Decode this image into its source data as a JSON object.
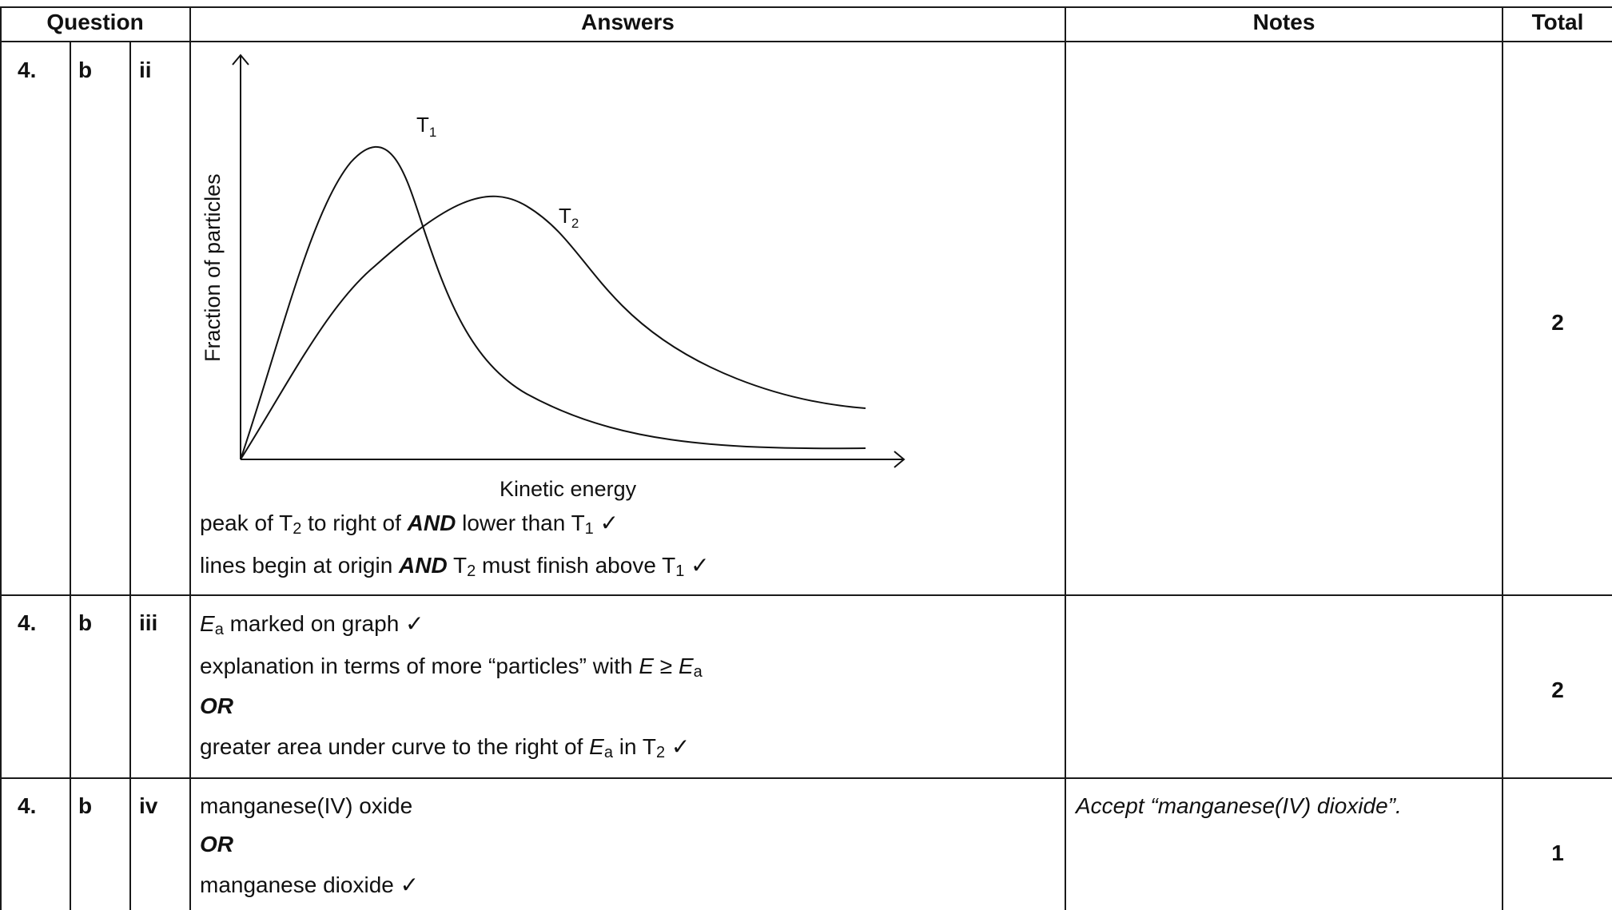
{
  "headers": {
    "question": "Question",
    "answers": "Answers",
    "notes": "Notes",
    "total": "Total"
  },
  "rows": [
    {
      "q1": "4.",
      "q2": "b",
      "q3": "ii",
      "graph": {
        "ylabel": "Fraction of particles",
        "xlabel": "Kinetic energy",
        "curve1_label": "T",
        "curve1_sub": "1",
        "curve2_label": "T",
        "curve2_sub": "2"
      },
      "line1": {
        "a": "peak of T",
        "a_sub": "2",
        "b": " to right of ",
        "and": "AND",
        "c": " lower than T",
        "c_sub": "1",
        "tick": " ✓"
      },
      "line2": {
        "a": "lines begin at origin ",
        "and": "AND",
        "b": " T",
        "b_sub": "2",
        "c": " must finish above T",
        "c_sub": "1",
        "tick": " ✓"
      },
      "notes": "",
      "total": "2"
    },
    {
      "q1": "4.",
      "q2": "b",
      "q3": "iii",
      "line1": {
        "e": "E",
        "e_sub": "a",
        "rest": " marked on graph ✓"
      },
      "line2": {
        "a": "explanation in terms of more “particles” with ",
        "e": "E",
        "ge": " ≥ ",
        "e2": "E",
        "e2_sub": "a"
      },
      "or": "OR",
      "line3": {
        "a": "greater area under curve to the right of ",
        "e": "E",
        "e_sub": "a",
        "b": " in T",
        "b_sub": "2",
        "tick": " ✓"
      },
      "notes": "",
      "total": "2"
    },
    {
      "q1": "4.",
      "q2": "b",
      "q3": "iv",
      "line1": "manganese(IV) oxide",
      "or": "OR",
      "line2": "manganese dioxide ✓",
      "notes": "Accept “manganese(IV) dioxide”.",
      "total": "1"
    }
  ]
}
